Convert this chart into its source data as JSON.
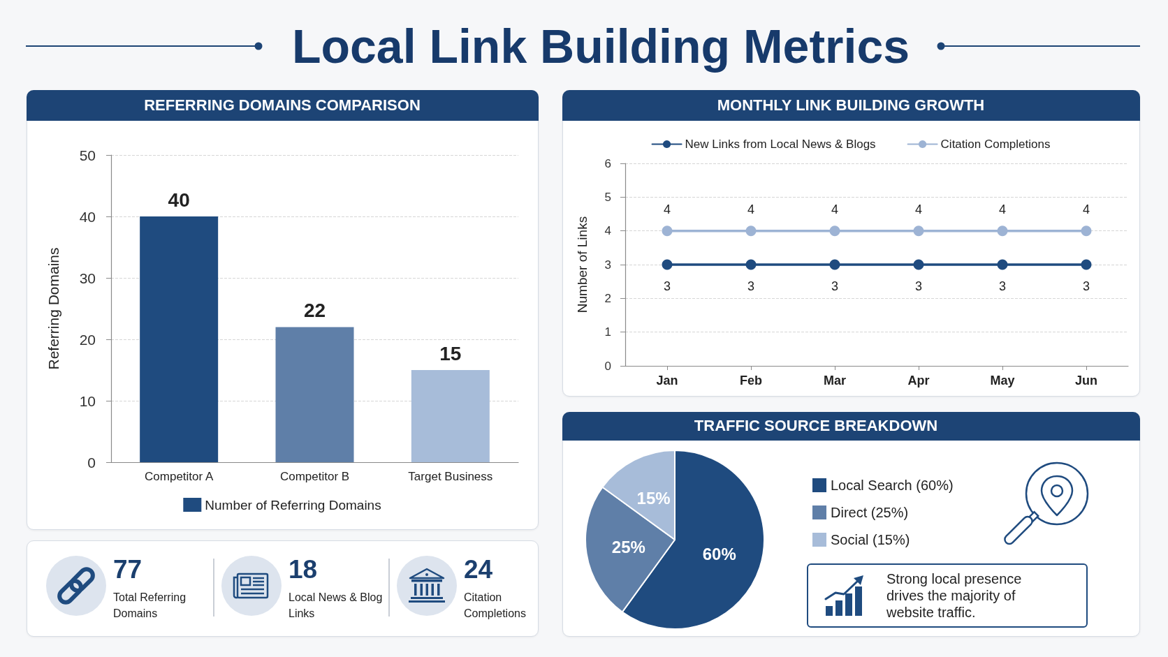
{
  "chart_data": [
    {
      "type": "other",
      "title": "Local Link Building Metrics"
    },
    {
      "type": "bar",
      "title": "REFERRING DOMAINS COMPARISON",
      "categories": [
        "Competitor A",
        "Competitor B",
        "Target Business"
      ],
      "series": [
        {
          "name": "Number of Referring Domains",
          "color": "#1f4b7f",
          "colors": [
            "#1f4b7f",
            "#5f7fa8",
            "#a7bcd9"
          ],
          "values": [
            40,
            22,
            15
          ]
        }
      ],
      "ylabel": "Referring Domains",
      "ylim": [
        0,
        50
      ],
      "yticks": [
        0,
        10,
        20,
        30,
        40,
        50
      ],
      "grid": "y",
      "legend": "bottom",
      "data_labels": true
    },
    {
      "type": "line",
      "title": "MONTHLY LINK BUILDING GROWTH",
      "categories": [
        "Jan",
        "Feb",
        "Mar",
        "Apr",
        "May",
        "Jun"
      ],
      "series": [
        {
          "name": "New Links from Local News & Blogs",
          "color": "#1f4b7f",
          "values": [
            3,
            3,
            3,
            3,
            3,
            3
          ]
        },
        {
          "name": "Citation Completions",
          "color": "#9db3d4",
          "values": [
            4,
            4,
            4,
            4,
            4,
            4
          ]
        }
      ],
      "ylabel": "Number of Links",
      "ylim": [
        0,
        6
      ],
      "yticks": [
        0,
        1,
        2,
        3,
        4,
        5,
        6
      ],
      "grid": "y",
      "legend": "top",
      "marker": "circle",
      "line_style": "solid",
      "data_labels": true
    },
    {
      "type": "other",
      "categories": [
        "Total Referring Domains",
        "Local News & Blog Links",
        "Citation Completions"
      ],
      "values": [
        77,
        18,
        24
      ],
      "data_labels": true
    },
    {
      "type": "pie",
      "title": "TRAFFIC SOURCE BREAKDOWN",
      "categories": [
        "Local Search (60%)",
        "Direct (25%)",
        "Social (15%)"
      ],
      "values": [
        60,
        25,
        15
      ],
      "colors": [
        "#1f4b7f",
        "#5f7fa8",
        "#a7bcd9"
      ],
      "value_labels": [
        "60%",
        "25%",
        "15%"
      ],
      "legend": "right",
      "annotations": [
        "Strong local presence drives the majority of website traffic."
      ]
    }
  ]
}
